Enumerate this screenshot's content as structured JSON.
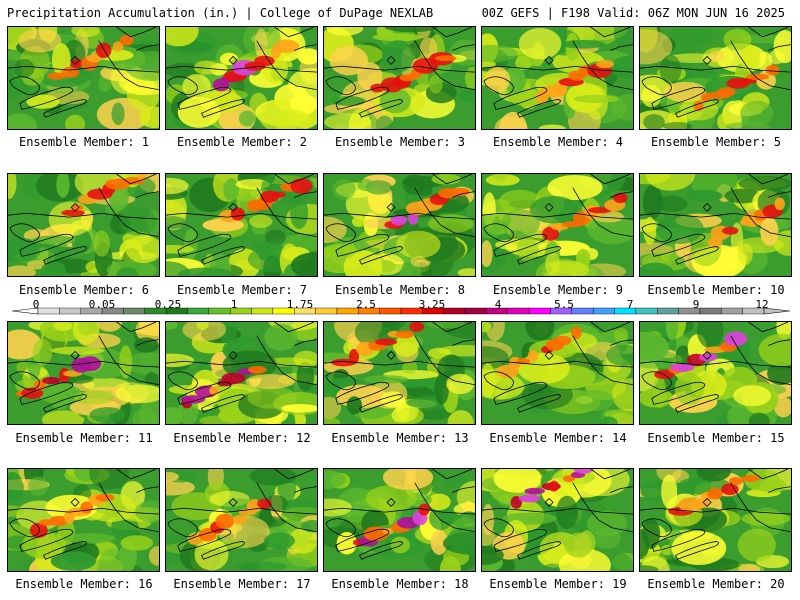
{
  "header": {
    "left": "Precipitation Accumulation (in.) | College of DuPage NEXLAB",
    "right": "00Z GEFS | F198 Valid: 06Z MON JUN 16 2025"
  },
  "members": [
    {
      "label": "Ensemble Member: 1"
    },
    {
      "label": "Ensemble Member: 2"
    },
    {
      "label": "Ensemble Member: 3"
    },
    {
      "label": "Ensemble Member: 4"
    },
    {
      "label": "Ensemble Member: 5"
    },
    {
      "label": "Ensemble Member: 6"
    },
    {
      "label": "Ensemble Member: 7"
    },
    {
      "label": "Ensemble Member: 8"
    },
    {
      "label": "Ensemble Member: 9"
    },
    {
      "label": "Ensemble Member: 10"
    },
    {
      "label": "Ensemble Member: 11"
    },
    {
      "label": "Ensemble Member: 12"
    },
    {
      "label": "Ensemble Member: 13"
    },
    {
      "label": "Ensemble Member: 14"
    },
    {
      "label": "Ensemble Member: 15"
    },
    {
      "label": "Ensemble Member: 16"
    },
    {
      "label": "Ensemble Member: 17"
    },
    {
      "label": "Ensemble Member: 18"
    },
    {
      "label": "Ensemble Member: 19"
    },
    {
      "label": "Ensemble Member: 20"
    }
  ],
  "colorbar": {
    "tick_labels": [
      "0",
      "0.05",
      "0.25",
      "1",
      "1.75",
      "2.5",
      "3.25",
      "4",
      "5.5",
      "7",
      "9",
      "12"
    ],
    "colors": [
      "#e0e0e0",
      "#c8c8c8",
      "#a8a8a8",
      "#888888",
      "#6a8a6a",
      "#2e8b2e",
      "#1f7a1f",
      "#3aa83a",
      "#66c02a",
      "#9ad21a",
      "#cce61a",
      "#ffff00",
      "#ffe066",
      "#ffcc33",
      "#ffa500",
      "#ff7f00",
      "#ff5500",
      "#ff2a00",
      "#e00000",
      "#b00020",
      "#a00040",
      "#c00080",
      "#e000c0",
      "#ff00ff",
      "#a060ff",
      "#6080ff",
      "#40a0ff",
      "#00e0ff",
      "#40c0c0",
      "#60a0a0",
      "#909090",
      "#7a7a7a",
      "#a0a0a0",
      "#c0c0c0"
    ]
  }
}
